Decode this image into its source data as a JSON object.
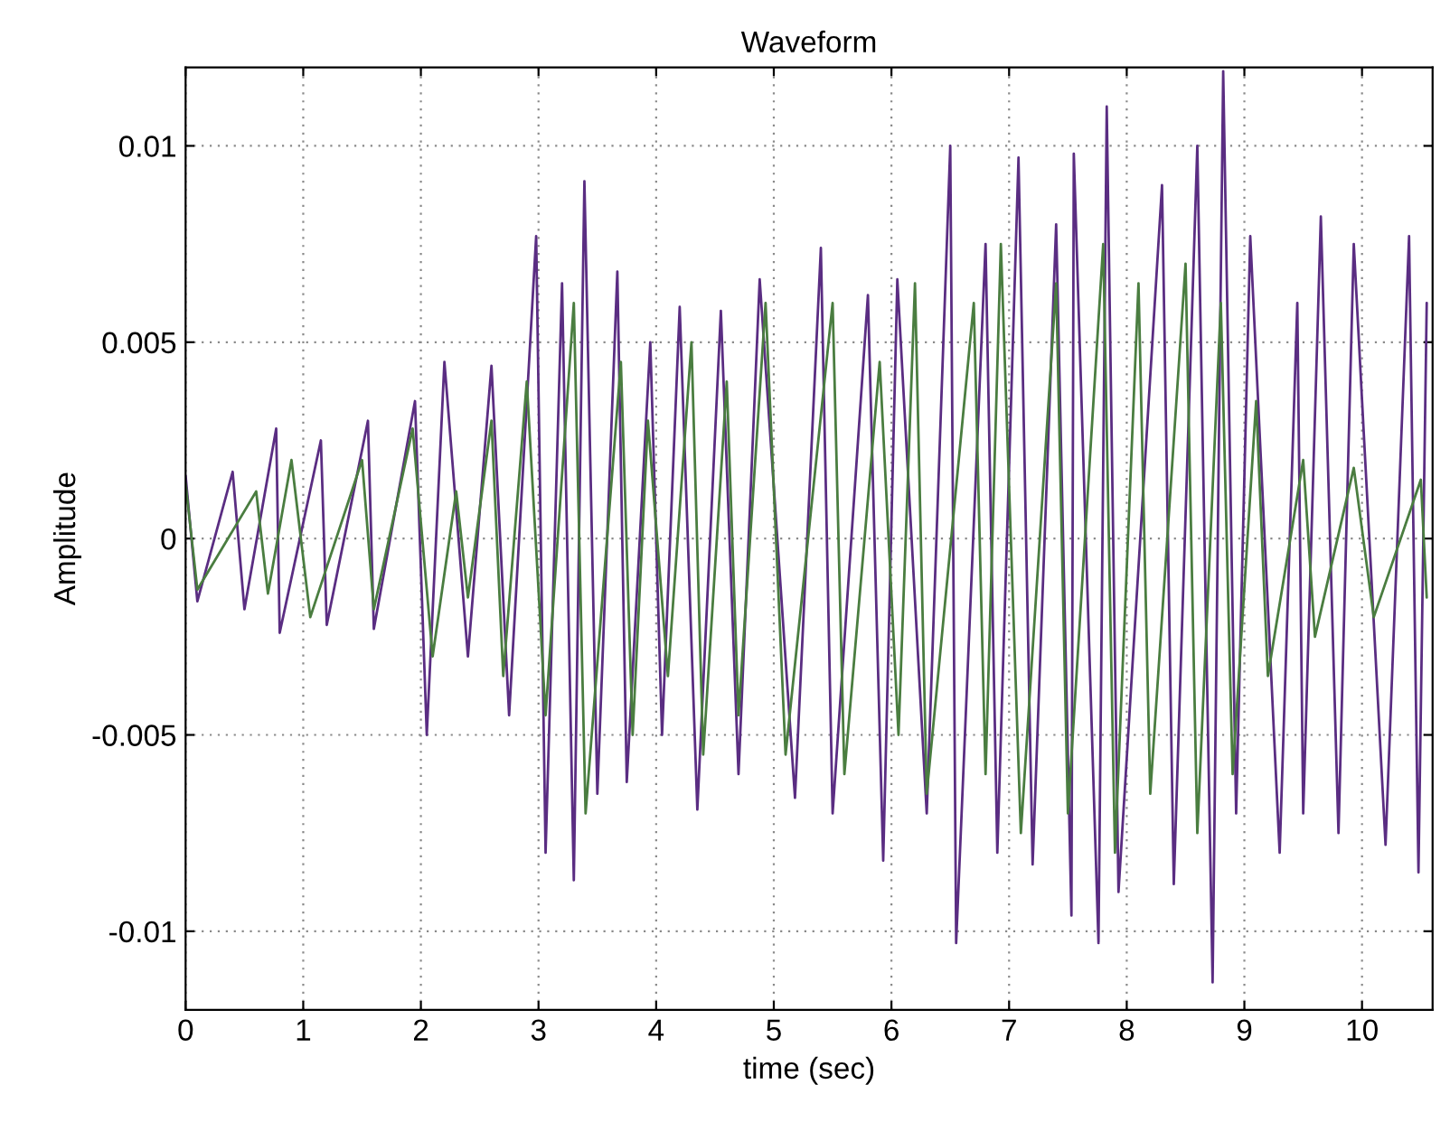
{
  "chart_data": {
    "type": "line",
    "title": "Waveform",
    "xlabel": "time (sec)",
    "ylabel": "Amplitude",
    "xlim": [
      0,
      10.6
    ],
    "xticks": [
      0,
      1,
      2,
      3,
      4,
      5,
      6,
      7,
      8,
      9,
      10
    ],
    "ylim": [
      -0.012,
      0.012
    ],
    "yticks": [
      -0.01,
      -0.005,
      0,
      0.005,
      0.01
    ],
    "grid": true,
    "line_style": "solid",
    "marker": "none",
    "series": [
      {
        "color": "#5a2d82",
        "x": [
          0.0,
          0.1,
          0.4,
          0.5,
          0.77,
          0.8,
          1.15,
          1.2,
          1.55,
          1.6,
          1.95,
          2.05,
          2.2,
          2.4,
          2.6,
          2.75,
          2.98,
          3.06,
          3.2,
          3.3,
          3.39,
          3.5,
          3.67,
          3.75,
          3.95,
          4.05,
          4.2,
          4.35,
          4.55,
          4.7,
          4.88,
          5.18,
          5.4,
          5.5,
          5.8,
          5.93,
          6.05,
          6.3,
          6.5,
          6.55,
          6.8,
          6.9,
          7.08,
          7.2,
          7.4,
          7.53,
          7.55,
          7.76,
          7.83,
          7.93,
          8.3,
          8.4,
          8.6,
          8.73,
          8.82,
          8.93,
          9.05,
          9.3,
          9.45,
          9.5,
          9.65,
          9.8,
          9.93,
          10.2,
          10.4,
          10.48,
          10.55
        ],
        "values": [
          0.0016,
          -0.0016,
          0.0017,
          -0.0018,
          0.0028,
          -0.0024,
          0.0025,
          -0.0022,
          0.003,
          -0.0023,
          0.0035,
          -0.005,
          0.0045,
          -0.003,
          0.0044,
          -0.0045,
          0.0077,
          -0.008,
          0.0065,
          -0.0087,
          0.0091,
          -0.0065,
          0.0068,
          -0.0062,
          0.005,
          -0.005,
          0.0059,
          -0.0069,
          0.0058,
          -0.006,
          0.0066,
          -0.0066,
          0.0074,
          -0.007,
          0.0062,
          -0.0082,
          0.0066,
          -0.007,
          0.01,
          -0.0103,
          0.0075,
          -0.008,
          0.0097,
          -0.0083,
          0.008,
          -0.0096,
          0.0098,
          -0.0103,
          0.011,
          -0.009,
          0.009,
          -0.0088,
          0.01,
          -0.0113,
          0.0119,
          -0.007,
          0.0077,
          -0.008,
          0.006,
          -0.007,
          0.0082,
          -0.0075,
          0.0075,
          -0.0078,
          0.0077,
          -0.0085,
          0.006
        ]
      },
      {
        "color": "#4a7d40",
        "x": [
          0.0,
          0.1,
          0.6,
          0.7,
          0.9,
          1.06,
          1.5,
          1.6,
          1.93,
          2.1,
          2.3,
          2.4,
          2.6,
          2.7,
          2.9,
          3.06,
          3.3,
          3.4,
          3.7,
          3.8,
          3.93,
          4.1,
          4.3,
          4.4,
          4.6,
          4.7,
          4.93,
          5.1,
          5.5,
          5.6,
          5.9,
          6.06,
          6.2,
          6.3,
          6.7,
          6.8,
          6.93,
          7.1,
          7.4,
          7.5,
          7.8,
          7.9,
          8.1,
          8.2,
          8.5,
          8.6,
          8.8,
          8.9,
          9.1,
          9.2,
          9.5,
          9.6,
          9.93,
          10.1,
          10.5,
          10.55
        ],
        "values": [
          0.0014,
          -0.0013,
          0.0012,
          -0.0014,
          0.002,
          -0.002,
          0.002,
          -0.0018,
          0.0028,
          -0.003,
          0.0012,
          -0.0015,
          0.003,
          -0.0035,
          0.004,
          -0.0045,
          0.006,
          -0.007,
          0.0045,
          -0.005,
          0.003,
          -0.0035,
          0.005,
          -0.0055,
          0.004,
          -0.0045,
          0.006,
          -0.0055,
          0.006,
          -0.006,
          0.0045,
          -0.005,
          0.0065,
          -0.0065,
          0.006,
          -0.006,
          0.0075,
          -0.0075,
          0.0065,
          -0.007,
          0.0075,
          -0.008,
          0.0065,
          -0.0065,
          0.007,
          -0.0075,
          0.006,
          -0.006,
          0.0035,
          -0.0035,
          0.002,
          -0.0025,
          0.0018,
          -0.002,
          0.0015,
          -0.0015
        ]
      }
    ]
  }
}
